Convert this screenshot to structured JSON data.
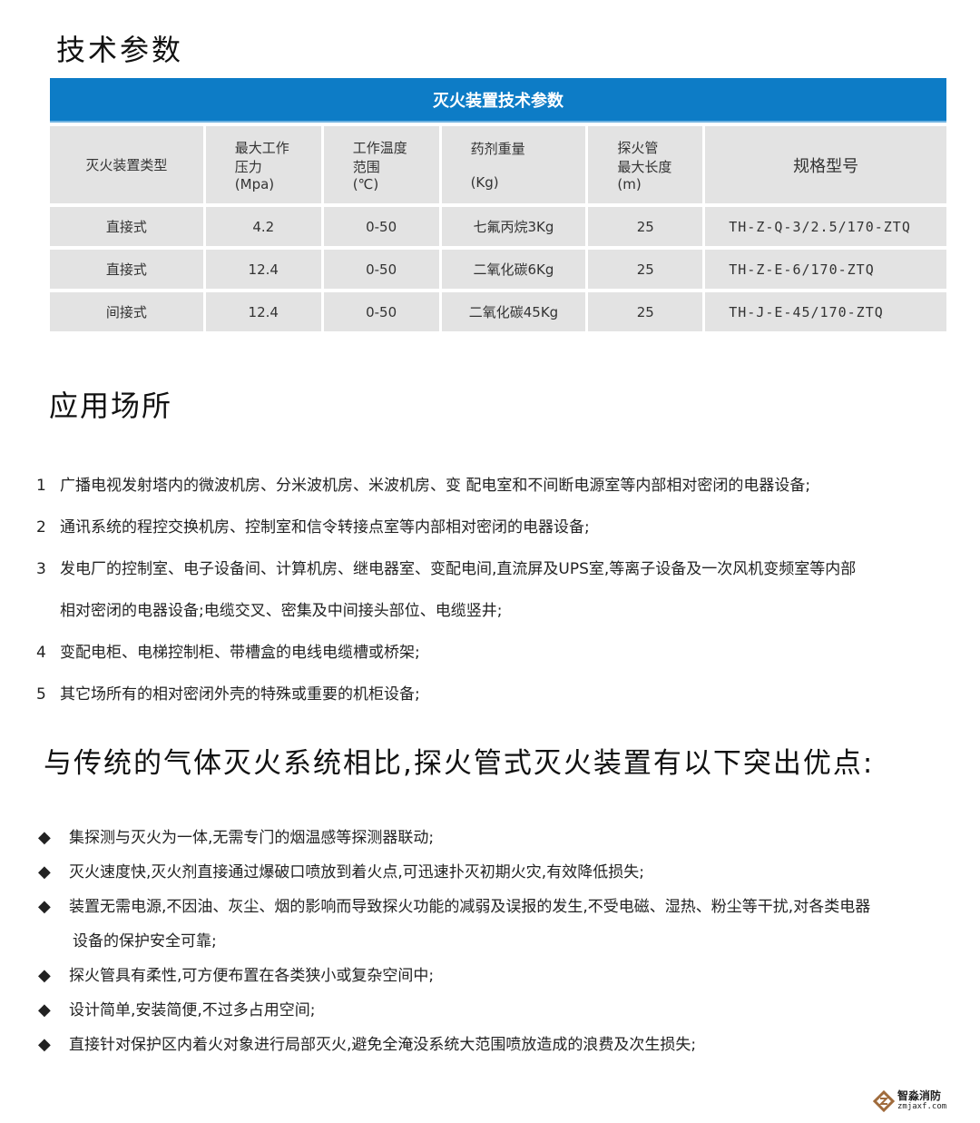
{
  "section1_title": "技术参数",
  "table": {
    "title": "灭火装置技术参数",
    "headers": [
      "灭火装置类型",
      "最大工作\n压力\n(Mpa)",
      "工作温度\n范围\n(℃)",
      "药剂重量\n\n(Kg)",
      "探火管\n最大长度\n(m)",
      "规格型号"
    ],
    "rows": [
      [
        "直接式",
        "4.2",
        "0-50",
        "七氟丙烷3Kg",
        "25",
        "TH-Z-Q-3/2.5/170-ZTQ"
      ],
      [
        "直接式",
        "12.4",
        "0-50",
        "二氧化碳6Kg",
        "25",
        "TH-Z-E-6/170-ZTQ"
      ],
      [
        "间接式",
        "12.4",
        "0-50",
        "二氧化碳45Kg",
        "25",
        "TH-J-E-45/170-ZTQ"
      ]
    ],
    "header_color": "#0d7cc6"
  },
  "section2_title": "应用场所",
  "applications": [
    {
      "num": "1",
      "text": "广播电视发射塔内的微波机房、分米波机房、米波机房、变  配电室和不间断电源室等内部相对密闭的电器设备;"
    },
    {
      "num": "2",
      "text": "通讯系统的程控交换机房、控制室和信令转接点室等内部相对密闭的电器设备;"
    },
    {
      "num": "3",
      "text": "发电厂的控制室、电子设备间、计算机房、继电器室、变配电间,直流屏及UPS室,等离子设备及一次风机变频室等内部"
    },
    {
      "num": "",
      "text": "相对密闭的电器设备;电缆交叉、密集及中间接头部位、电缆竖井;"
    },
    {
      "num": "4",
      "text": "变配电柜、电梯控制柜、带槽盒的电线电缆槽或桥架;"
    },
    {
      "num": "5",
      "text": "其它场所有的相对密闭外壳的特殊或重要的机柜设备;"
    }
  ],
  "section3_title": "与传统的气体灭火系统相比,探火管式灭火装置有以下突出优点:",
  "advantages": [
    {
      "bullet": "◆",
      "text": "集探测与灭火为一体,无需专门的烟温感等探测器联动;"
    },
    {
      "bullet": "◆",
      "text": "灭火速度快,灭火剂直接通过爆破口喷放到着火点,可迅速扑灭初期火灾,有效降低损失;"
    },
    {
      "bullet": "◆",
      "text": "装置无需电源,不因油、灰尘、烟的影响而导致探火功能的减弱及误报的发生,不受电磁、湿热、粉尘等干扰,对各类电器"
    },
    {
      "bullet": "",
      "text": "设备的保护安全可靠;"
    },
    {
      "bullet": "◆",
      "text": "探火管具有柔性,可方便布置在各类狭小或复杂空间中;"
    },
    {
      "bullet": "◆",
      "text": "设计简单,安装简便,不过多占用空间;"
    },
    {
      "bullet": "◆",
      "text": "直接针对保护区内着火对象进行局部灭火,避免全淹没系统大范围喷放造成的浪费及次生损失;"
    }
  ],
  "watermark": {
    "name": "智淼消防",
    "url": "zmjaxf.com"
  }
}
